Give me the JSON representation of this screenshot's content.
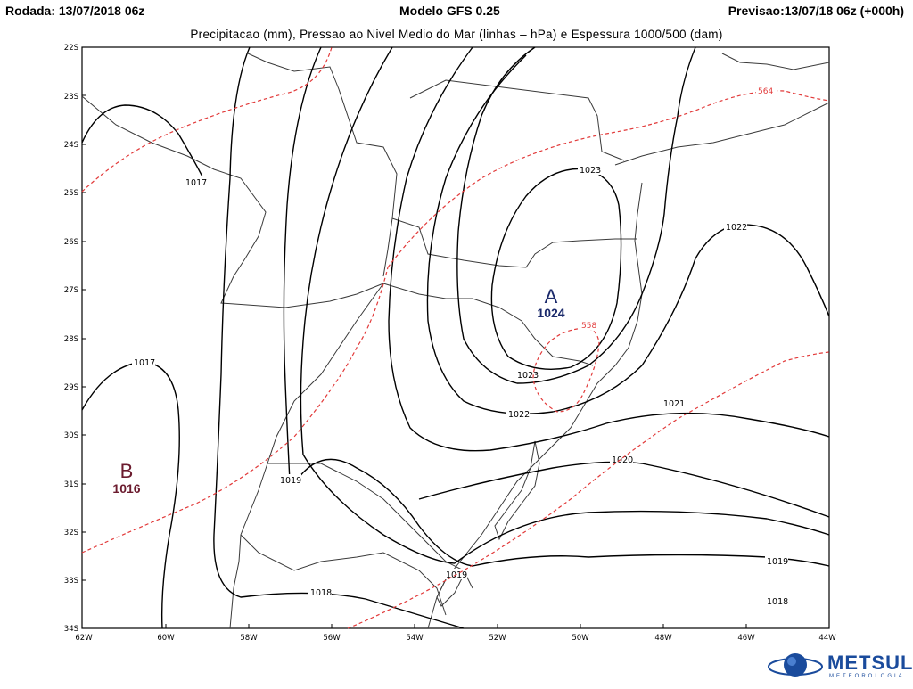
{
  "header": {
    "left": "Rodada: 13/07/2018 06z",
    "center": "Modelo GFS 0.25",
    "right": "Previsao:13/07/18 06z (+000h)"
  },
  "subtitle": "Precipitacao (mm), Pressao ao Nivel Medio do Mar (linhas – hPa) e Espessura 1000/500 (dam)",
  "axes": {
    "lat_labels": [
      "22S",
      "23S",
      "24S",
      "25S",
      "26S",
      "27S",
      "28S",
      "29S",
      "30S",
      "31S",
      "32S",
      "33S",
      "34S"
    ],
    "lon_labels": [
      "62W",
      "60W",
      "58W",
      "56W",
      "54W",
      "52W",
      "50W",
      "48W",
      "46W",
      "44W"
    ]
  },
  "pressure_centers": {
    "high": {
      "letter": "A",
      "value": "1024",
      "color": "#1b2a6b"
    },
    "low": {
      "letter": "B",
      "value": "1016",
      "color": "#6b1b2e"
    }
  },
  "isobar_labels": [
    "1017",
    "1017",
    "1019",
    "1018",
    "1023",
    "1023",
    "1022",
    "1022",
    "1021",
    "1020",
    "1019",
    "1019",
    "1018"
  ],
  "thickness_labels": [
    "564",
    "558"
  ],
  "colors": {
    "isobar": "#000000",
    "thickness": "#e23a3a",
    "border": "#3a3a3a"
  },
  "logo": {
    "name": "METSUL",
    "sub": "METEOROLOGIA"
  }
}
